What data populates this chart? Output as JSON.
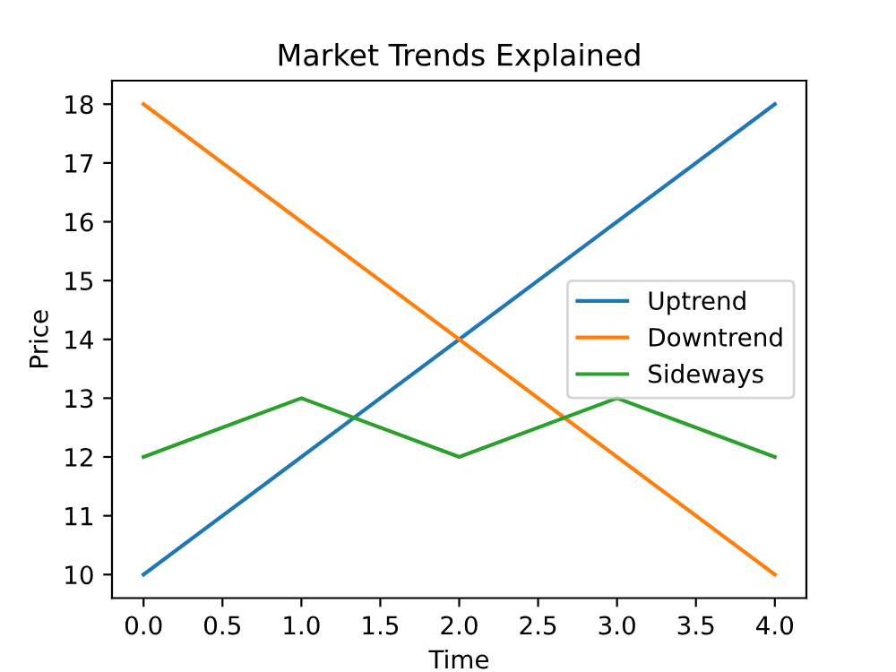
{
  "chart_data": {
    "type": "line",
    "title": "Market Trends Explained",
    "xlabel": "Time",
    "ylabel": "Price",
    "x": [
      0,
      1,
      2,
      3,
      4
    ],
    "series": [
      {
        "name": "Uptrend",
        "color": "#1f77b4",
        "values": [
          10,
          12,
          14,
          16,
          18
        ]
      },
      {
        "name": "Downtrend",
        "color": "#ff7f0e",
        "values": [
          18,
          16,
          14,
          12,
          10
        ]
      },
      {
        "name": "Sideways",
        "color": "#2ca02c",
        "values": [
          12,
          13,
          12,
          13,
          12
        ]
      }
    ],
    "xlim": [
      -0.2,
      4.2
    ],
    "xticks": [
      {
        "value": 0,
        "label": "0.0"
      },
      {
        "value": 0.5,
        "label": "0.5"
      },
      {
        "value": 1,
        "label": "1.0"
      },
      {
        "value": 1.5,
        "label": "1.5"
      },
      {
        "value": 2,
        "label": "2.0"
      },
      {
        "value": 2.5,
        "label": "2.5"
      },
      {
        "value": 3,
        "label": "3.0"
      },
      {
        "value": 3.5,
        "label": "3.5"
      },
      {
        "value": 4,
        "label": "4.0"
      }
    ],
    "ylim": [
      9.6,
      18.4
    ],
    "yticks": [
      10,
      11,
      12,
      13,
      14,
      15,
      16,
      17,
      18
    ],
    "legend": "center right",
    "grid": false,
    "marker": "none",
    "line_style": "solid"
  }
}
